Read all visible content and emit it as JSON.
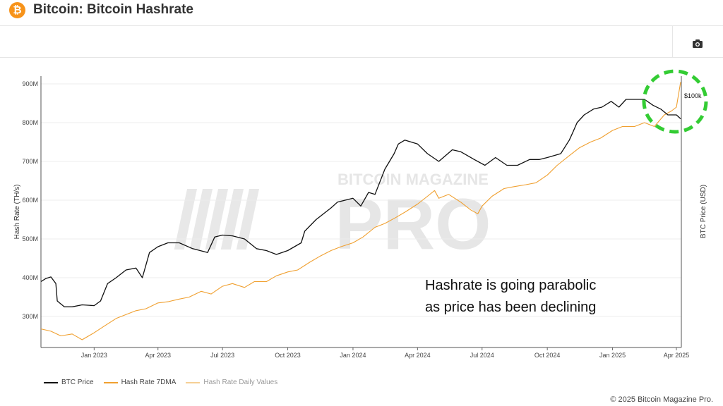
{
  "header": {
    "logo_glyph": "₿",
    "title": "Bitcoin: Bitcoin Hashrate"
  },
  "toolbar": {
    "camera_icon": "camera-icon"
  },
  "watermark": {
    "line1": "BITCOIN MAGAZINE",
    "line2": "PRO"
  },
  "annotation": {
    "line1": "Hashrate is going parabolic",
    "line2": "as price has been declining",
    "price_label": "$100k",
    "highlight_color": "#33cc33"
  },
  "footer": {
    "copyright": "© 2025 Bitcoin Magazine Pro."
  },
  "legend": [
    {
      "label": "BTC Price",
      "color": "#111111"
    },
    {
      "label": "Hash Rate 7DMA",
      "color": "#f0a030"
    },
    {
      "label": "Hash Rate Daily Values",
      "color": "#f6cf95"
    }
  ],
  "chart_data": {
    "type": "line",
    "ylabel": "Hash Rate (TH/s)",
    "y2label": "BTC Price (USD)",
    "ylim": [
      220,
      920
    ],
    "yticks": [
      300,
      400,
      500,
      600,
      700,
      800,
      900
    ],
    "ytick_labels": [
      "300M",
      "400M",
      "500M",
      "600M",
      "700M",
      "800M",
      "900M"
    ],
    "xlim": [
      "2022-10-18",
      "2025-04-08"
    ],
    "xticks": [
      "2023-01-01",
      "2023-04-01",
      "2023-07-01",
      "2023-10-01",
      "2024-01-01",
      "2024-04-01",
      "2024-07-01",
      "2024-10-01",
      "2025-01-01",
      "2025-04-01"
    ],
    "xtick_labels": [
      "Jan 2023",
      "Apr 2023",
      "Jul 2023",
      "Oct 2023",
      "Jan 2024",
      "Apr 2024",
      "Jul 2024",
      "Oct 2024",
      "Jan 2025",
      "Apr 2025"
    ],
    "grid": true,
    "series": [
      {
        "name": "BTC Price",
        "color": "#111111",
        "x": [
          "2022-10-18",
          "2022-10-25",
          "2022-11-01",
          "2022-11-08",
          "2022-11-10",
          "2022-11-20",
          "2022-12-01",
          "2022-12-15",
          "2023-01-01",
          "2023-01-10",
          "2023-01-20",
          "2023-02-01",
          "2023-02-15",
          "2023-03-01",
          "2023-03-10",
          "2023-03-20",
          "2023-04-01",
          "2023-04-15",
          "2023-05-01",
          "2023-05-20",
          "2023-06-10",
          "2023-06-20",
          "2023-07-01",
          "2023-07-15",
          "2023-08-01",
          "2023-08-18",
          "2023-09-01",
          "2023-09-15",
          "2023-10-01",
          "2023-10-20",
          "2023-10-25",
          "2023-11-10",
          "2023-12-01",
          "2023-12-10",
          "2024-01-01",
          "2024-01-12",
          "2024-01-23",
          "2024-02-01",
          "2024-02-15",
          "2024-02-28",
          "2024-03-05",
          "2024-03-14",
          "2024-04-01",
          "2024-04-15",
          "2024-05-01",
          "2024-05-20",
          "2024-06-01",
          "2024-06-20",
          "2024-07-05",
          "2024-07-20",
          "2024-08-05",
          "2024-08-20",
          "2024-09-06",
          "2024-09-20",
          "2024-10-01",
          "2024-10-20",
          "2024-11-01",
          "2024-11-06",
          "2024-11-12",
          "2024-11-22",
          "2024-12-05",
          "2024-12-17",
          "2024-12-30",
          "2025-01-10",
          "2025-01-20",
          "2025-02-01",
          "2025-02-15",
          "2025-02-27",
          "2025-03-10",
          "2025-03-20",
          "2025-04-01",
          "2025-04-07"
        ],
        "y": [
          390,
          398,
          402,
          385,
          340,
          325,
          325,
          330,
          328,
          340,
          385,
          400,
          420,
          425,
          400,
          465,
          480,
          490,
          490,
          475,
          465,
          505,
          510,
          508,
          500,
          475,
          470,
          460,
          470,
          490,
          520,
          550,
          580,
          595,
          605,
          585,
          620,
          615,
          680,
          720,
          745,
          755,
          745,
          720,
          700,
          730,
          725,
          705,
          690,
          710,
          690,
          690,
          705,
          705,
          710,
          720,
          755,
          775,
          800,
          820,
          835,
          840,
          855,
          840,
          860,
          860,
          860,
          845,
          835,
          820,
          820,
          810
        ]
      },
      {
        "name": "Hash Rate 7DMA",
        "color": "#f0a030",
        "x": [
          "2022-10-18",
          "2022-11-01",
          "2022-11-15",
          "2022-12-01",
          "2022-12-15",
          "2023-01-01",
          "2023-01-15",
          "2023-02-01",
          "2023-02-15",
          "2023-03-01",
          "2023-03-15",
          "2023-04-01",
          "2023-04-15",
          "2023-05-01",
          "2023-05-15",
          "2023-06-01",
          "2023-06-15",
          "2023-07-01",
          "2023-07-15",
          "2023-08-01",
          "2023-08-15",
          "2023-09-01",
          "2023-09-15",
          "2023-10-01",
          "2023-10-15",
          "2023-11-01",
          "2023-11-15",
          "2023-12-01",
          "2023-12-15",
          "2024-01-01",
          "2024-01-15",
          "2024-02-01",
          "2024-02-15",
          "2024-03-01",
          "2024-03-15",
          "2024-04-01",
          "2024-04-15",
          "2024-04-25",
          "2024-05-01",
          "2024-05-15",
          "2024-06-01",
          "2024-06-15",
          "2024-06-25",
          "2024-07-01",
          "2024-07-15",
          "2024-08-01",
          "2024-08-15",
          "2024-09-01",
          "2024-09-15",
          "2024-10-01",
          "2024-10-15",
          "2024-11-01",
          "2024-11-15",
          "2024-12-01",
          "2024-12-15",
          "2025-01-01",
          "2025-01-15",
          "2025-02-01",
          "2025-02-15",
          "2025-03-01",
          "2025-03-15",
          "2025-03-25",
          "2025-04-01",
          "2025-04-07"
        ],
        "y": [
          268,
          262,
          250,
          255,
          240,
          258,
          275,
          295,
          305,
          315,
          320,
          335,
          338,
          345,
          350,
          365,
          358,
          378,
          385,
          375,
          390,
          390,
          405,
          415,
          420,
          440,
          455,
          470,
          480,
          490,
          505,
          530,
          540,
          555,
          570,
          590,
          610,
          625,
          605,
          615,
          595,
          575,
          565,
          585,
          610,
          630,
          635,
          640,
          645,
          665,
          690,
          715,
          735,
          750,
          760,
          780,
          790,
          790,
          800,
          790,
          820,
          830,
          840,
          905
        ]
      }
    ]
  }
}
